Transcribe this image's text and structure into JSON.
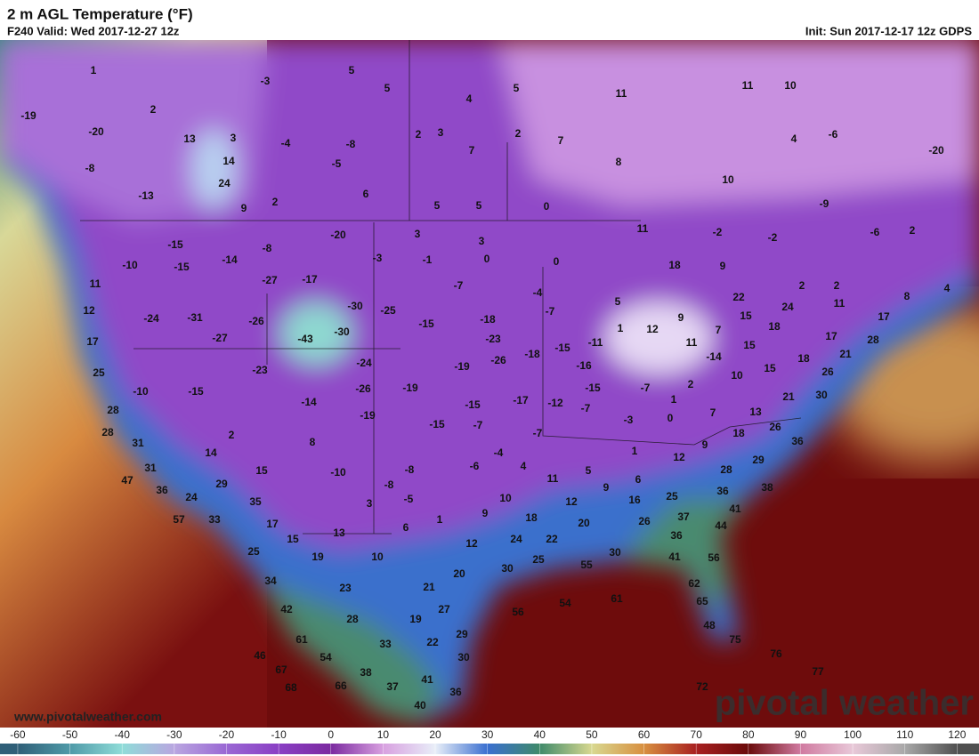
{
  "header": {
    "title": "2 m AGL Temperature (°F)",
    "valid": "F240 Valid: Wed 2017-12-27 12z",
    "init": "Init: Sun 2017-12-17 12z GDPS"
  },
  "map": {
    "labels": [
      1,
      5,
      -3,
      5,
      5,
      4,
      11,
      10,
      11,
      -19,
      2,
      -6,
      -20,
      13,
      3,
      -4,
      -8,
      2,
      3,
      2,
      7,
      4,
      -20,
      -8,
      14,
      -5,
      7,
      8,
      10,
      24,
      6,
      -13,
      9,
      2,
      5,
      5,
      0,
      -9,
      -2,
      -6,
      2,
      -20,
      3,
      11,
      -15,
      -8,
      3,
      -2,
      -14,
      -3,
      -1,
      0,
      0,
      18,
      9,
      -15,
      -10,
      11,
      -27,
      -17,
      -7,
      -4,
      2,
      2,
      8,
      4,
      12,
      -24,
      -31,
      -26,
      -30,
      -25,
      -18,
      -7,
      5,
      9,
      22,
      24,
      11,
      17,
      15,
      18,
      17,
      -27,
      -43,
      -30,
      -15,
      -23,
      -11,
      -15,
      -18,
      12,
      7,
      11,
      1,
      15,
      17,
      28,
      21,
      25,
      -23,
      -24,
      -19,
      -26,
      -16,
      -14,
      15,
      18,
      26,
      -10,
      -15,
      -26,
      -19,
      -15,
      -7,
      2,
      10,
      21,
      30,
      28,
      -14,
      -19,
      -15,
      -17,
      -12,
      -7,
      -3,
      1,
      0,
      7,
      13,
      28,
      -15,
      -7,
      -7,
      18,
      26,
      36,
      2,
      8,
      31,
      1,
      9,
      12,
      29,
      14,
      -4,
      -6,
      15,
      -8,
      4,
      31,
      -10,
      11,
      5,
      6,
      28,
      47,
      29,
      -8,
      9,
      25,
      36,
      38,
      36,
      24,
      35,
      -5,
      10,
      12,
      16,
      41,
      3,
      9,
      26,
      37,
      44,
      57,
      33,
      17,
      18,
      20,
      6,
      1,
      13,
      15,
      22,
      36,
      12,
      24,
      25,
      19,
      10,
      25,
      30,
      55,
      30,
      41,
      56,
      34,
      23,
      21,
      20,
      62,
      42,
      56,
      54,
      61,
      27,
      65,
      28,
      19,
      29,
      22,
      33,
      48,
      61,
      75,
      46,
      54,
      30,
      76,
      77,
      67,
      38,
      37,
      41,
      36,
      72,
      68,
      66,
      40
    ]
  },
  "colorbar": {
    "lim": [
      -63.4,
      124.2
    ],
    "ticks": [
      -60,
      -50,
      -40,
      -30,
      -20,
      -10,
      0,
      10,
      20,
      30,
      40,
      50,
      60,
      70,
      80,
      90,
      100,
      110,
      120
    ],
    "colors": [
      "#2f5f78",
      "#4f9aa8",
      "#8fdcd8",
      "#b9a6e0",
      "#9a68d4",
      "#8a3fc4",
      "#7b2aa0",
      "#d8a0e0",
      "#e8eef8",
      "#3a6fd0",
      "#3f8a6a",
      "#d8d890",
      "#d89040",
      "#a82020",
      "#6a0a0a",
      "#d07aa0",
      "#e8c8d8",
      "#a8a8a8",
      "#505050"
    ]
  },
  "footer": {
    "site": "www.pivotalweather.com",
    "brand": "pivotal weather"
  }
}
